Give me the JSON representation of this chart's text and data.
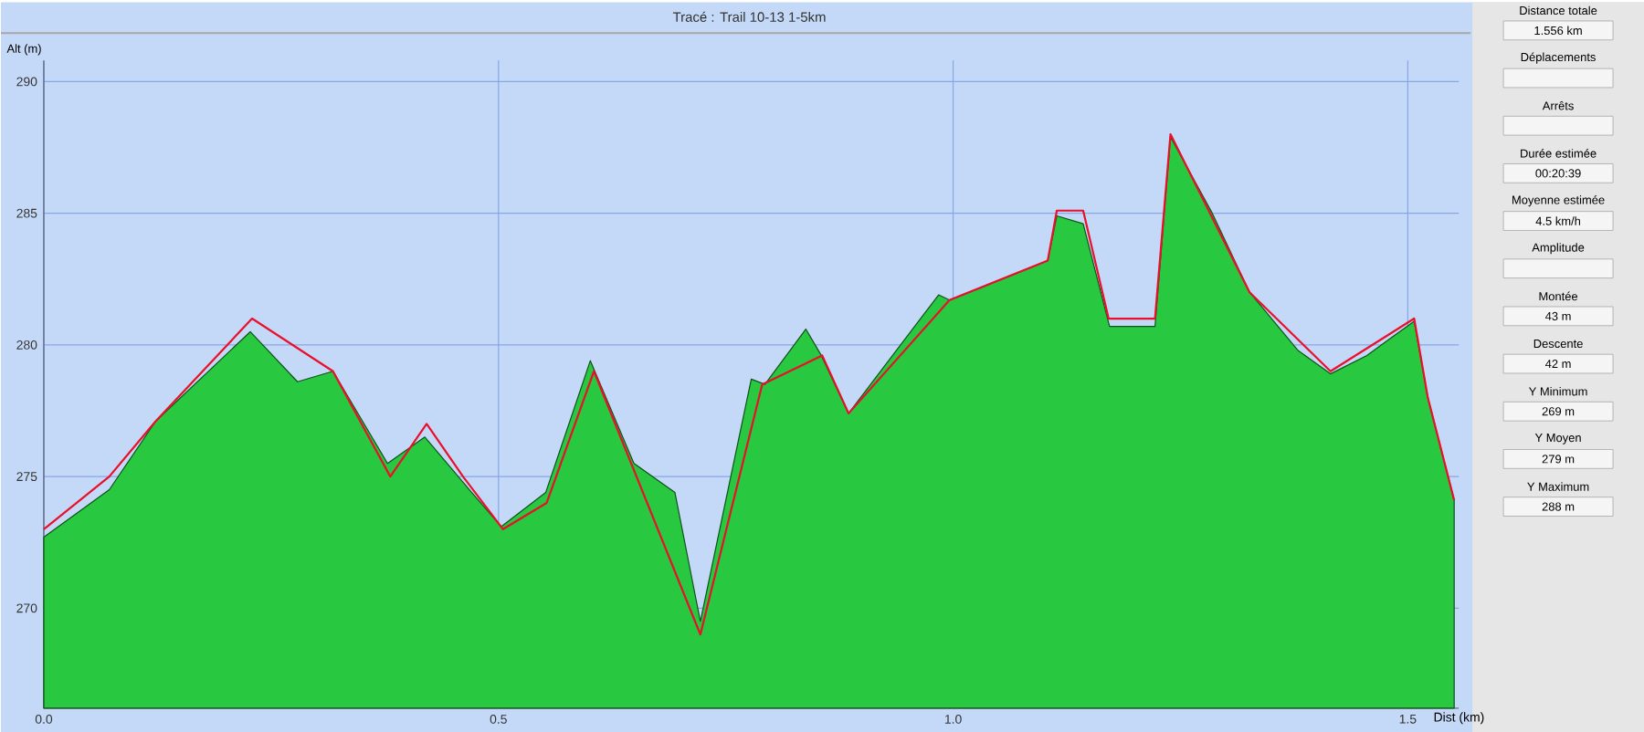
{
  "chart_data": [
    {
      "type": "area",
      "title": "Tracé : Trail 10-13 1-5km",
      "xlabel": "Dist (km)",
      "ylabel": "Alt (m)",
      "xlim": [
        0,
        1.556
      ],
      "ylim": [
        266.2,
        290.8
      ],
      "xticks": [
        {
          "value": 0,
          "label": "0.0"
        },
        {
          "value": 0.5,
          "label": "0.5"
        },
        {
          "value": 1.0,
          "label": "1.0"
        },
        {
          "value": 1.5,
          "label": "1.5"
        }
      ],
      "yticks": [
        270,
        275,
        280,
        285,
        290
      ],
      "grid": true,
      "series": [
        {
          "type": "area",
          "color": "#28c840",
          "x": [
            0,
            0.072,
            0.123,
            0.227,
            0.279,
            0.318,
            0.378,
            0.419,
            0.468,
            0.503,
            0.552,
            0.601,
            0.649,
            0.694,
            0.722,
            0.778,
            0.793,
            0.838,
            0.855,
            0.885,
            0.984,
            0.996,
            1.061,
            1.104,
            1.114,
            1.143,
            1.172,
            1.222,
            1.239,
            1.285,
            1.326,
            1.379,
            1.415,
            1.455,
            1.507,
            1.522,
            1.551
          ],
          "values": [
            272.7,
            274.5,
            277.1,
            280.5,
            278.6,
            279.0,
            275.5,
            276.5,
            274.5,
            273.1,
            274.4,
            279.4,
            275.5,
            274.4,
            269.5,
            278.7,
            278.5,
            280.6,
            279.6,
            277.4,
            281.9,
            281.7,
            282.6,
            283.2,
            284.9,
            284.6,
            280.7,
            280.7,
            287.9,
            285.0,
            282.0,
            279.8,
            278.9,
            279.6,
            280.9,
            278.0,
            274.1
          ]
        },
        {
          "type": "line",
          "color": "#e8102a",
          "x": [
            0,
            0.072,
            0.123,
            0.229,
            0.318,
            0.381,
            0.421,
            0.461,
            0.505,
            0.553,
            0.605,
            0.722,
            0.79,
            0.856,
            0.885,
            0.996,
            1.104,
            1.114,
            1.143,
            1.171,
            1.222,
            1.239,
            1.326,
            1.415,
            1.507,
            1.522,
            1.551
          ],
          "values": [
            273.0,
            275.0,
            277.1,
            281.0,
            279.0,
            275.0,
            277.0,
            275.0,
            273.0,
            274.0,
            279.0,
            269.0,
            278.5,
            279.6,
            277.4,
            281.7,
            283.2,
            285.1,
            285.1,
            281.0,
            281.0,
            288.0,
            282.0,
            279.0,
            281.0,
            278.0,
            274.1
          ]
        }
      ]
    },
    {
      "type": "other",
      "annotations": [
        "Distance totale",
        "1.556 km",
        "Déplacements",
        null,
        "Arrêts",
        null,
        "Durée estimée",
        "00:20:39",
        "Moyenne estimée",
        "4.5 km/h",
        "Amplitude",
        null,
        "Montée",
        "43 m",
        "Descente",
        "42 m",
        "Y Minimum",
        "269 m",
        "Y Moyen",
        "279 m",
        "Y Maximum",
        "288 m"
      ]
    }
  ]
}
